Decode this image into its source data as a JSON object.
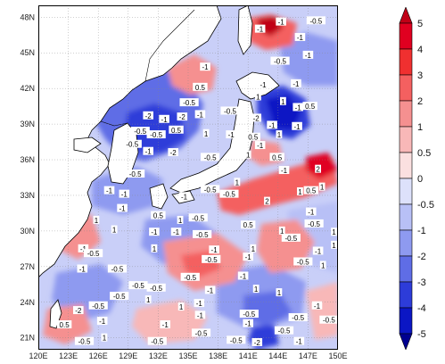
{
  "map": {
    "lat_ticks": [
      "48N",
      "45N",
      "42N",
      "39N",
      "36N",
      "33N",
      "30N",
      "27N",
      "24N",
      "21N"
    ],
    "lat_values": [
      48,
      45,
      42,
      39,
      36,
      33,
      30,
      27,
      24,
      21
    ],
    "lon_ticks": [
      "120E",
      "123E",
      "126E",
      "129E",
      "132E",
      "135E",
      "138E",
      "141E",
      "144E",
      "147E",
      "150E"
    ],
    "lon_values": [
      120,
      123,
      126,
      129,
      132,
      135,
      138,
      141,
      144,
      147,
      150
    ],
    "extent": {
      "lon_min": 120,
      "lon_max": 150,
      "lat_min": 20,
      "lat_max": 49
    },
    "grid": true,
    "contour_labels": [
      {
        "text": "-1",
        "lon": 144.3,
        "lat": 47.6
      },
      {
        "text": "-1",
        "lon": 142.2,
        "lat": 47.0
      },
      {
        "text": "-0.5",
        "lon": 147.8,
        "lat": 47.7
      },
      {
        "text": "-1",
        "lon": 146.2,
        "lat": 46.3
      },
      {
        "text": "-0.5",
        "lon": 144.2,
        "lat": 44.3
      },
      {
        "text": "-1",
        "lon": 147.0,
        "lat": 44.8
      },
      {
        "text": "-1",
        "lon": 136.7,
        "lat": 43.8
      },
      {
        "text": "-1",
        "lon": 142.5,
        "lat": 42.3
      },
      {
        "text": "0.5",
        "lon": 136.2,
        "lat": 42.1
      },
      {
        "text": "-1",
        "lon": 145.8,
        "lat": 42.4
      },
      {
        "text": "1",
        "lon": 142.0,
        "lat": 41.3
      },
      {
        "text": "-0.5",
        "lon": 135.1,
        "lat": 40.8
      },
      {
        "text": "1",
        "lon": 144.5,
        "lat": 40.9
      },
      {
        "text": "-1",
        "lon": 146.0,
        "lat": 40.4
      },
      {
        "text": "-0.5",
        "lon": 139.2,
        "lat": 40.1
      },
      {
        "text": "0.5",
        "lon": 147.2,
        "lat": 40.5
      },
      {
        "text": "-2",
        "lon": 131.0,
        "lat": 39.7
      },
      {
        "text": "-1",
        "lon": 132.6,
        "lat": 39.4
      },
      {
        "text": "-2",
        "lon": 134.4,
        "lat": 39.6
      },
      {
        "text": "-1",
        "lon": 136.2,
        "lat": 39.8
      },
      {
        "text": "-2",
        "lon": 141.8,
        "lat": 39.5
      },
      {
        "text": "-1",
        "lon": 143.4,
        "lat": 38.9
      },
      {
        "text": "-1",
        "lon": 145.9,
        "lat": 38.8
      },
      {
        "text": "-0.5",
        "lon": 130.2,
        "lat": 38.4
      },
      {
        "text": "1",
        "lon": 136.8,
        "lat": 38.2
      },
      {
        "text": "0.5",
        "lon": 133.8,
        "lat": 38.5
      },
      {
        "text": "-0.5",
        "lon": 131.8,
        "lat": 38.1
      },
      {
        "text": "-1",
        "lon": 139.3,
        "lat": 38.1
      },
      {
        "text": "0.5",
        "lon": 141.5,
        "lat": 37.9
      },
      {
        "text": "1",
        "lon": 144.1,
        "lat": 38.1
      },
      {
        "text": "-0.5",
        "lon": 129.4,
        "lat": 37.3
      },
      {
        "text": "-1",
        "lon": 131.0,
        "lat": 36.7
      },
      {
        "text": "-2",
        "lon": 133.5,
        "lat": 36.6
      },
      {
        "text": "-1",
        "lon": 142.2,
        "lat": 37.2
      },
      {
        "text": "-0.5",
        "lon": 137.2,
        "lat": 36.2
      },
      {
        "text": "1",
        "lon": 141.0,
        "lat": 36.4
      },
      {
        "text": "0.5",
        "lon": 143.9,
        "lat": 36.2
      },
      {
        "text": "-1",
        "lon": 144.6,
        "lat": 35.1
      },
      {
        "text": "2",
        "lon": 148.0,
        "lat": 35.2
      },
      {
        "text": "-0.5",
        "lon": 129.7,
        "lat": 34.8
      },
      {
        "text": "-1",
        "lon": 127.1,
        "lat": 33.4
      },
      {
        "text": "-1",
        "lon": 128.6,
        "lat": 33.1
      },
      {
        "text": "-0.5",
        "lon": 137.2,
        "lat": 33.5
      },
      {
        "text": "-0.5",
        "lon": 139.1,
        "lat": 33.1
      },
      {
        "text": "-1",
        "lon": 134.6,
        "lat": 32.9
      },
      {
        "text": "1",
        "lon": 139.9,
        "lat": 34.1
      },
      {
        "text": "2",
        "lon": 142.9,
        "lat": 32.5
      },
      {
        "text": "1",
        "lon": 146.2,
        "lat": 33.3
      },
      {
        "text": "0.5",
        "lon": 147.3,
        "lat": 33.4
      },
      {
        "text": "1",
        "lon": 148.4,
        "lat": 33.7
      },
      {
        "text": "-1",
        "lon": 128.4,
        "lat": 31.9
      },
      {
        "text": "1",
        "lon": 125.8,
        "lat": 30.9
      },
      {
        "text": "0.5",
        "lon": 132.0,
        "lat": 31.3
      },
      {
        "text": "1",
        "lon": 134.2,
        "lat": 30.9
      },
      {
        "text": "-0.5",
        "lon": 136.0,
        "lat": 31.1
      },
      {
        "text": "0.5",
        "lon": 141.0,
        "lat": 30.5
      },
      {
        "text": "-1",
        "lon": 147.3,
        "lat": 31.6
      },
      {
        "text": "-0.5",
        "lon": 147.6,
        "lat": 30.6
      },
      {
        "text": "1",
        "lon": 127.6,
        "lat": 30.1
      },
      {
        "text": "-1",
        "lon": 131.6,
        "lat": 29.9
      },
      {
        "text": "-1",
        "lon": 133.8,
        "lat": 29.9
      },
      {
        "text": "-0.5",
        "lon": 136.4,
        "lat": 29.7
      },
      {
        "text": "1",
        "lon": 144.4,
        "lat": 30.0
      },
      {
        "text": "-0.5",
        "lon": 145.3,
        "lat": 29.4
      },
      {
        "text": "1",
        "lon": 149.6,
        "lat": 29.9
      },
      {
        "text": "-1",
        "lon": 124.5,
        "lat": 28.5
      },
      {
        "text": "-0.5",
        "lon": 125.5,
        "lat": 28.1
      },
      {
        "text": "1",
        "lon": 131.6,
        "lat": 28.5
      },
      {
        "text": "-1",
        "lon": 137.6,
        "lat": 28.4
      },
      {
        "text": "1",
        "lon": 141.5,
        "lat": 28.5
      },
      {
        "text": "-1",
        "lon": 148.0,
        "lat": 28.3
      },
      {
        "text": "1",
        "lon": 149.6,
        "lat": 28.8
      },
      {
        "text": "-0.5",
        "lon": 137.3,
        "lat": 27.6
      },
      {
        "text": "-1",
        "lon": 141.0,
        "lat": 27.8
      },
      {
        "text": "-0.5",
        "lon": 146.5,
        "lat": 27.4
      },
      {
        "text": "1",
        "lon": 148.5,
        "lat": 27.1
      },
      {
        "text": "-1",
        "lon": 124.4,
        "lat": 26.8
      },
      {
        "text": "-0.5",
        "lon": 127.9,
        "lat": 26.8
      },
      {
        "text": "-0.5",
        "lon": 130.0,
        "lat": 25.4
      },
      {
        "text": "-0.5",
        "lon": 131.8,
        "lat": 25.2
      },
      {
        "text": "-0.5",
        "lon": 135.2,
        "lat": 26.1
      },
      {
        "text": "1",
        "lon": 141.8,
        "lat": 25.1
      },
      {
        "text": "-1",
        "lon": 140.5,
        "lat": 26.2
      },
      {
        "text": "-0.5",
        "lon": 128.1,
        "lat": 24.5
      },
      {
        "text": "-1",
        "lon": 137.2,
        "lat": 25.0
      },
      {
        "text": "1",
        "lon": 131.0,
        "lat": 24.2
      },
      {
        "text": "1",
        "lon": 144.1,
        "lat": 24.8
      },
      {
        "text": "-2",
        "lon": 124.0,
        "lat": 23.3
      },
      {
        "text": "-0.5",
        "lon": 126.0,
        "lat": 23.7
      },
      {
        "text": "1",
        "lon": 134.3,
        "lat": 23.6
      },
      {
        "text": "-1",
        "lon": 136.1,
        "lat": 23.9
      },
      {
        "text": "-1",
        "lon": 147.9,
        "lat": 23.7
      },
      {
        "text": "-1",
        "lon": 136.2,
        "lat": 22.9
      },
      {
        "text": "0.5",
        "lon": 122.6,
        "lat": 22.1
      },
      {
        "text": "-1",
        "lon": 126.4,
        "lat": 22.4
      },
      {
        "text": "-1",
        "lon": 132.7,
        "lat": 22.1
      },
      {
        "text": "-1",
        "lon": 141.0,
        "lat": 22.2
      },
      {
        "text": "-0.5",
        "lon": 141.1,
        "lat": 23.0
      },
      {
        "text": "-0.5",
        "lon": 146.0,
        "lat": 22.7
      },
      {
        "text": "-0.5",
        "lon": 144.6,
        "lat": 21.6
      },
      {
        "text": "-0.5",
        "lon": 149.1,
        "lat": 22.5
      },
      {
        "text": "-0.5",
        "lon": 124.6,
        "lat": 20.7
      },
      {
        "text": "1",
        "lon": 126.6,
        "lat": 21.0
      },
      {
        "text": "-0.5",
        "lon": 131.9,
        "lat": 20.7
      },
      {
        "text": "-0.5",
        "lon": 136.3,
        "lat": 21.4
      },
      {
        "text": "-0.5",
        "lon": 139.8,
        "lat": 20.8
      },
      {
        "text": "-2",
        "lon": 141.9,
        "lat": 20.6
      },
      {
        "text": "-1",
        "lon": 146.1,
        "lat": 20.7
      }
    ]
  },
  "colorbar": {
    "labels": [
      "5",
      "4",
      "3",
      "2",
      "1",
      "0.5",
      "0",
      "-0.5",
      "-1",
      "-2",
      "-3",
      "-4",
      "-5"
    ],
    "colors": [
      "#c00016",
      "#e00020",
      "#f03030",
      "#f46060",
      "#f59090",
      "#f8b8b8",
      "#fbe0e0",
      "#dde1fb",
      "#b8c0f6",
      "#8e9af0",
      "#5f6de6",
      "#2d3cd9",
      "#0b16c4",
      "#000090"
    ]
  },
  "colors": {
    "land": "#ffffff",
    "coast": "#000000",
    "border": "#000000",
    "grid": "#888888"
  }
}
